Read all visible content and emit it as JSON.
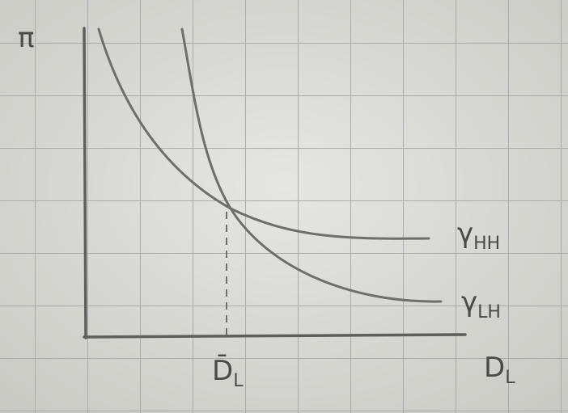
{
  "y_axis": {
    "label": "π"
  },
  "x_axis": {
    "symbol": "D",
    "sub": "L"
  },
  "marker": {
    "symbol": "D̄",
    "sub": "L"
  },
  "curves": [
    {
      "symbol": "γ",
      "sub": "HH"
    },
    {
      "symbol": "γ",
      "sub": "LH"
    }
  ]
}
